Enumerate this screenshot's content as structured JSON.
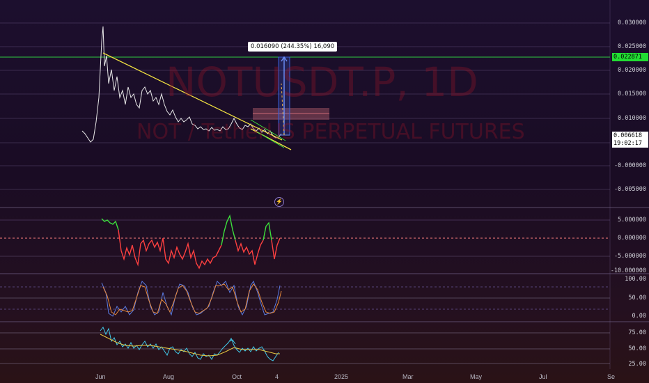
{
  "symbol_watermark": "NOTUSDT.P, 1D",
  "description_watermark": "NOT / TetherUS PERPETUAL FUTURES",
  "measure_label": "0.016090 (244.35%) 16,090",
  "price_axis": [
    "0.030000",
    "0.025000",
    "0.020000",
    "0.015000",
    "0.010000",
    "-0.000000",
    "-0.005000"
  ],
  "price_tags": {
    "target": "0.022871",
    "current": "0.006618",
    "countdown": "19:02:17"
  },
  "osc1_axis": [
    "5.000000",
    "0.000000",
    "-5.000000",
    "-10.000000"
  ],
  "osc2_axis": [
    "100.00",
    "50.00",
    "0.00"
  ],
  "osc3_axis": [
    "75.00",
    "50.00",
    "25.00"
  ],
  "date_axis": [
    "Jun",
    "Aug",
    "Oct",
    "4",
    "2025",
    "Mar",
    "May",
    "Jul",
    "Se"
  ],
  "colors": {
    "target_line": "#2ecc40",
    "trendline": "#f0e040",
    "measure": "#3a5fd8",
    "up": "#3ce03c",
    "down": "#ff4040"
  },
  "icons": {
    "bolt": "lightning-icon"
  }
}
